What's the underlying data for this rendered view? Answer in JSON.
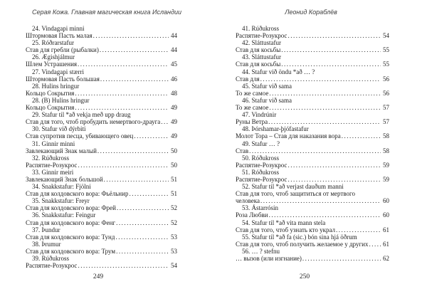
{
  "colors": {
    "paper": "#ffffff",
    "ink": "#1f1f1f"
  },
  "header": {
    "left_running_title": "Серая Кожа. Главная магическая книга Исландии",
    "right_running_title": "Леонид Кораблёв"
  },
  "left_page": {
    "folio": "249",
    "entries": [
      {
        "num": "24.",
        "title": "Vindagapi minni",
        "translation": "Штормовая Пасть малая",
        "page": "44"
      },
      {
        "num": "25.",
        "title": "Róðrarstafur",
        "translation": "Став для гребли (рыбалки)",
        "page": "44"
      },
      {
        "num": "26.",
        "title": "Ægishjálmur",
        "translation": "Шлем Устрашения",
        "page": "45"
      },
      {
        "num": "27.",
        "title": "Vindagapi stærri",
        "translation": "Штормовая Пасть большая",
        "page": "46"
      },
      {
        "num": "28.",
        "title": "Hulins hringur",
        "translation": "Кольцо Сокрытия",
        "page": "48"
      },
      {
        "num": "28.",
        "title": "(B) Hulins hringur",
        "translation": "Кольцо Сокрытия",
        "page": "49"
      },
      {
        "num": "29.",
        "title": "Stafur til *að vekja með upp draug",
        "translation": "Став для того, чтоб пробудить немертвого-драуга",
        "page": "49"
      },
      {
        "num": "30.",
        "title": "Stafur við dýrbiti",
        "translation": "Став супротив песца, убивающего овец",
        "page": "49"
      },
      {
        "num": "31.",
        "title": "Ginnir minni",
        "translation": "Завлекающий Знак малый",
        "page": "50"
      },
      {
        "num": "32.",
        "title": "Rúðukross",
        "translation": "Распятие-Розукрос",
        "page": "50"
      },
      {
        "num": "33.",
        "title": "Ginnir meiri",
        "translation": "Завлекающий Знак большой",
        "page": "51"
      },
      {
        "num": "34.",
        "title": "Snakkstafur: Fjölni",
        "translation": "Став для колдовского вора: Фьёльнир",
        "page": "51"
      },
      {
        "num": "35.",
        "title": "Snakkstafur: Freyr",
        "translation": "Став для колдовского вора: Фрей",
        "page": "52"
      },
      {
        "num": "36.",
        "title": "Snakkstafur: Feingur",
        "translation": "Став для колдовского вора: Фенг",
        "page": "52"
      },
      {
        "num": "37.",
        "title": "Þundur",
        "translation": "Став для колдовского вора: Тунд",
        "page": "53"
      },
      {
        "num": "38.",
        "title": "Þrumur",
        "translation": "Став для колдовского вора: Трум",
        "page": "53"
      },
      {
        "num": "39.",
        "title": "Rúðukross",
        "translation": "Распятие-Розукрос",
        "page": "54"
      }
    ]
  },
  "right_page": {
    "folio": "250",
    "entries": [
      {
        "num": "41.",
        "title": "Rúðukross",
        "translation": "Распятие-Розукрос",
        "page": "54"
      },
      {
        "num": "42.",
        "title": "Sláttustafur",
        "translation": "Став для косьбы",
        "page": "55"
      },
      {
        "num": "43.",
        "title": "Sláttustafur",
        "translation": "Став для косьбы",
        "page": "55"
      },
      {
        "num": "44.",
        "title": "Stafur við öndu *að … ?",
        "translation": "Став для",
        "page": "56"
      },
      {
        "num": "45.",
        "title": "Stafur við sama",
        "translation": "То же самое",
        "page": "56"
      },
      {
        "num": "46.",
        "title": "Stafur við sama",
        "translation": "То же самое",
        "page": "57"
      },
      {
        "num": "47.",
        "title": "Vindrúnir",
        "translation": "Руны Ветра",
        "page": "57"
      },
      {
        "num": "48.",
        "title": "Þórshamar-þjófastafur",
        "translation": "Молот Тора – Став для наказания вора",
        "page": "58"
      },
      {
        "num": "49.",
        "title": "Stafur … ?",
        "translation": "Став",
        "page": "58"
      },
      {
        "num": "50.",
        "title": "Róðukross",
        "translation": "Распятие-Розукрос",
        "page": "59"
      },
      {
        "num": "51.",
        "title": "Róðukross",
        "translation": "Распятие-Розукрос",
        "page": "59"
      },
      {
        "num": "52.",
        "title": "Stafur til *að verjast dauðum manni",
        "carry": "Став для того, чтоб защититься от мертвого",
        "translation": "человека",
        "page": "60"
      },
      {
        "num": "53.",
        "title": "Ástarrósin",
        "translation": "Роза Любви",
        "page": "60"
      },
      {
        "num": "54.",
        "title": "Stafur til *að vita mann stela",
        "translation": "Став для того,  чтоб узнать кто украл",
        "page": "61"
      },
      {
        "num": "55.",
        "title": "Stafur til *að fa (sic.) bón sina hjá öðrum",
        "translation": "Став для того, чтоб получить желаемое у других",
        "page": "61"
      },
      {
        "num": "56.",
        "title": "… ? stefnu",
        "translation": "… вызов (или изгнание)",
        "page": "62"
      }
    ]
  }
}
